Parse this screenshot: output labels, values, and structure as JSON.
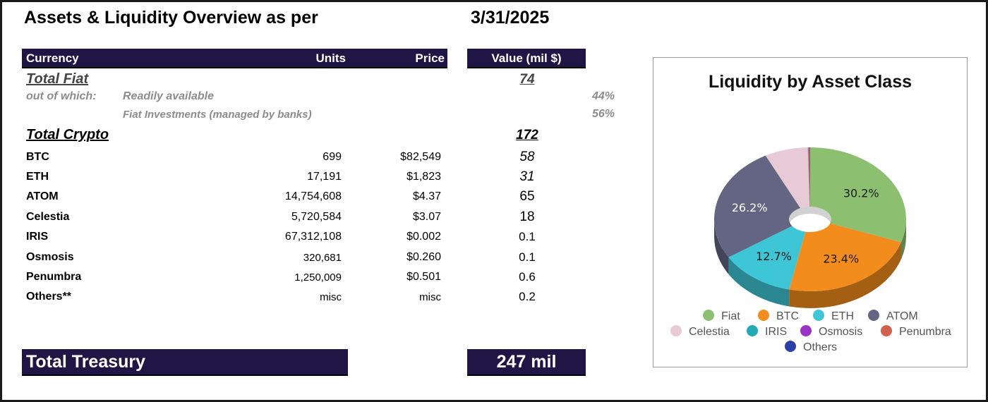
{
  "title": "Assets & Liquidity Overview as per",
  "date": "3/31/2025",
  "columns": {
    "currency": "Currency",
    "units": "Units",
    "price": "Price",
    "value": "Value (mil $)"
  },
  "fiat": {
    "label": "Total Fiat",
    "value": "74",
    "out_of_which": "out of which:",
    "sub": [
      {
        "label": "Readily available",
        "pct": "44%"
      },
      {
        "label": "Fiat Investments (managed by banks)",
        "pct": "56%"
      }
    ]
  },
  "crypto": {
    "label": "Total Crypto",
    "value": "172",
    "rows": [
      {
        "name": "BTC",
        "units": "699",
        "price": "$82,549",
        "value": "58"
      },
      {
        "name": "ETH",
        "units": "17,191",
        "price": "$1,823",
        "value": "31"
      },
      {
        "name": "ATOM",
        "units": "14,754,608",
        "price": "$4.37",
        "value": "65"
      },
      {
        "name": "Celestia",
        "units": "5,720,584",
        "price": "$3.07",
        "value": "18"
      },
      {
        "name": "IRIS",
        "units": "67,312,108",
        "price": "$0.002",
        "value": "0.1"
      },
      {
        "name": "Osmosis",
        "units": "320,681",
        "price": "$0.260",
        "value": "0.1"
      },
      {
        "name": "Penumbra",
        "units": "1,250,009",
        "price": "$0.501",
        "value": "0.6"
      },
      {
        "name": "Others**",
        "units": "misc",
        "price": "misc",
        "value": "0.2"
      }
    ]
  },
  "total_treasury": {
    "label": "Total Treasury",
    "value": "247 mil"
  },
  "chart_data": {
    "type": "pie",
    "style": "3d-donut",
    "title": "Liquidity by Asset Class",
    "legend_placement": "bottom",
    "slices": [
      {
        "name": "Fiat",
        "value": 30.2,
        "label": "30.2%",
        "color": "#8cc070"
      },
      {
        "name": "BTC",
        "value": 23.4,
        "label": "23.4%",
        "color": "#f28c1c"
      },
      {
        "name": "ETH",
        "value": 12.7,
        "label": "12.7%",
        "color": "#3ec6d6"
      },
      {
        "name": "ATOM",
        "value": 26.2,
        "label": "26.2%",
        "color": "#646582"
      },
      {
        "name": "Celestia",
        "value": 7.3,
        "label": "",
        "color": "#e8cad6"
      },
      {
        "name": "IRIS",
        "value": 0.04,
        "label": "",
        "color": "#23aab5"
      },
      {
        "name": "Osmosis",
        "value": 0.04,
        "label": "",
        "color": "#9a32c8"
      },
      {
        "name": "Penumbra",
        "value": 0.24,
        "label": "",
        "color": "#d0624e"
      },
      {
        "name": "Others",
        "value": 0.08,
        "label": "",
        "color": "#2e3fa8"
      }
    ]
  }
}
